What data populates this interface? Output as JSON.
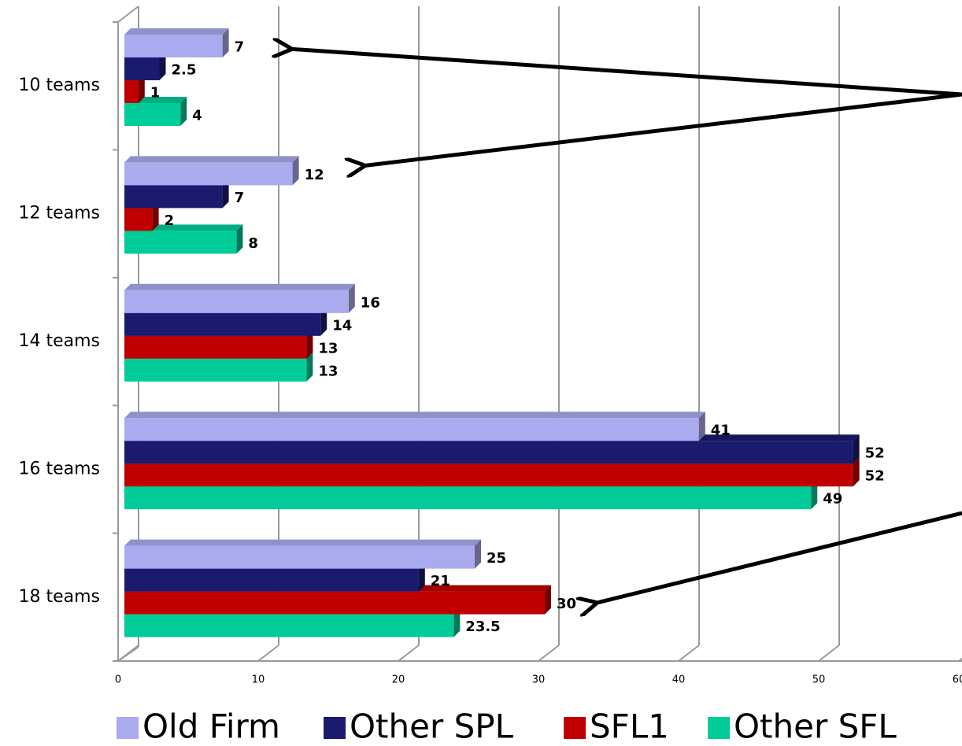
{
  "chart_data": {
    "type": "bar",
    "orientation": "horizontal",
    "categories": [
      "10 teams",
      "12 teams",
      "14 teams",
      "16 teams",
      "18 teams"
    ],
    "series": [
      {
        "name": "Old Firm",
        "color": "#aaaaee",
        "values": [
          7,
          12,
          16,
          41,
          25
        ]
      },
      {
        "name": "Other SPL",
        "color": "#1a1a6e",
        "values": [
          2.5,
          7,
          14,
          52,
          21
        ]
      },
      {
        "name": "SFL1",
        "color": "#c00000",
        "values": [
          1,
          2,
          13,
          52,
          30
        ]
      },
      {
        "name": "Other SFL",
        "color": "#00cc99",
        "values": [
          4,
          8,
          13,
          49,
          23.5
        ]
      }
    ],
    "xlim": [
      0,
      60
    ],
    "xticks": [
      0,
      10,
      20,
      30,
      40,
      50,
      60
    ],
    "grid": true,
    "legend": "bottom"
  }
}
